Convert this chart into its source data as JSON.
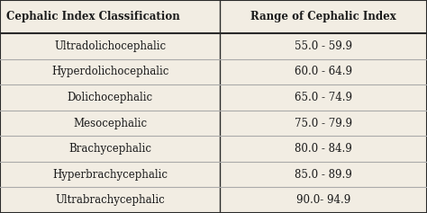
{
  "col1_header": "Cephalic Index Classification",
  "col2_header": "Range of Cephalic Index",
  "rows": [
    [
      "Ultradolichocephalic",
      "55.0 - 59.9"
    ],
    [
      "Hyperdolichocephalic",
      "60.0 - 64.9"
    ],
    [
      "Dolichocephalic",
      "65.0 - 74.9"
    ],
    [
      "Mesocephalic",
      "75.0 - 79.9"
    ],
    [
      "Brachycephalic",
      "80.0 - 84.9"
    ],
    [
      "Hyperbrachycephalic",
      "85.0 - 89.9"
    ],
    [
      "Ultrabrachycephalic",
      "90.0- 94.9"
    ]
  ],
  "background_color": "#f2ede3",
  "header_line_color": "#2a2a2a",
  "row_line_color": "#aaaaaa",
  "text_color": "#1a1a1a",
  "header_fontsize": 8.5,
  "body_fontsize": 8.5,
  "col_split": 0.515
}
